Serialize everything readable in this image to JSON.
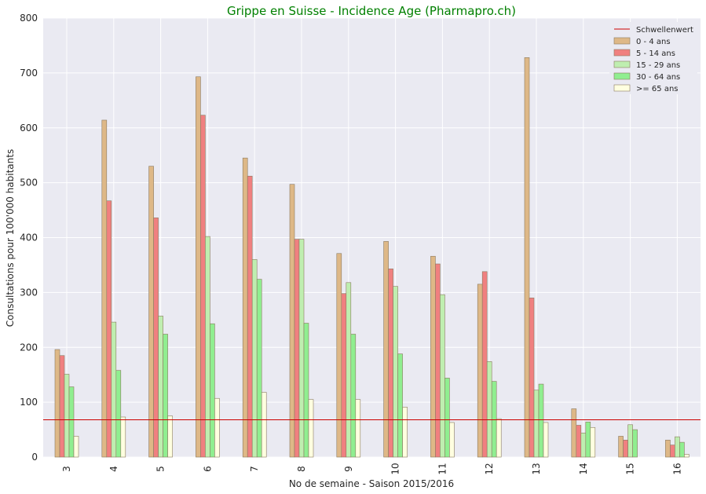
{
  "chart_data": {
    "type": "bar",
    "title": "Grippe en Suisse - Incidence Age (Pharmapro.ch)",
    "xlabel": "No de semaine - Saison 2015/2016",
    "ylabel": "Consultations pour 100'000 habitants",
    "ylim": [
      0,
      800
    ],
    "yticks": [
      0,
      100,
      200,
      300,
      400,
      500,
      600,
      700,
      800
    ],
    "categories": [
      "3",
      "4",
      "5",
      "6",
      "7",
      "8",
      "9",
      "10",
      "11",
      "12",
      "13",
      "14",
      "15",
      "16"
    ],
    "threshold": {
      "name": "Schwellenwert",
      "value": 68,
      "color": "#cc0000"
    },
    "series": [
      {
        "name": "0 - 4 ans",
        "color": "#deb887",
        "values": [
          196,
          614,
          530,
          693,
          545,
          497,
          371,
          393,
          366,
          315,
          728,
          88,
          38,
          31
        ]
      },
      {
        "name": "5 - 14 ans",
        "color": "#f08080",
        "values": [
          185,
          467,
          436,
          623,
          512,
          397,
          298,
          343,
          352,
          338,
          290,
          58,
          31,
          22
        ]
      },
      {
        "name": "15 - 29 ans",
        "color": "#bfeeb0",
        "values": [
          151,
          246,
          257,
          402,
          360,
          397,
          318,
          311,
          296,
          174,
          122,
          44,
          59,
          37
        ]
      },
      {
        "name": "30 - 64 ans",
        "color": "#90ee90",
        "values": [
          128,
          158,
          224,
          243,
          324,
          244,
          224,
          188,
          144,
          138,
          133,
          64,
          50,
          27
        ]
      },
      {
        "name": ">= 65 ans",
        "color": "#ffffe0",
        "values": [
          38,
          73,
          75,
          107,
          118,
          105,
          105,
          91,
          63,
          70,
          63,
          54,
          0,
          5
        ]
      }
    ],
    "legend_position": "top-right",
    "grid": true
  }
}
